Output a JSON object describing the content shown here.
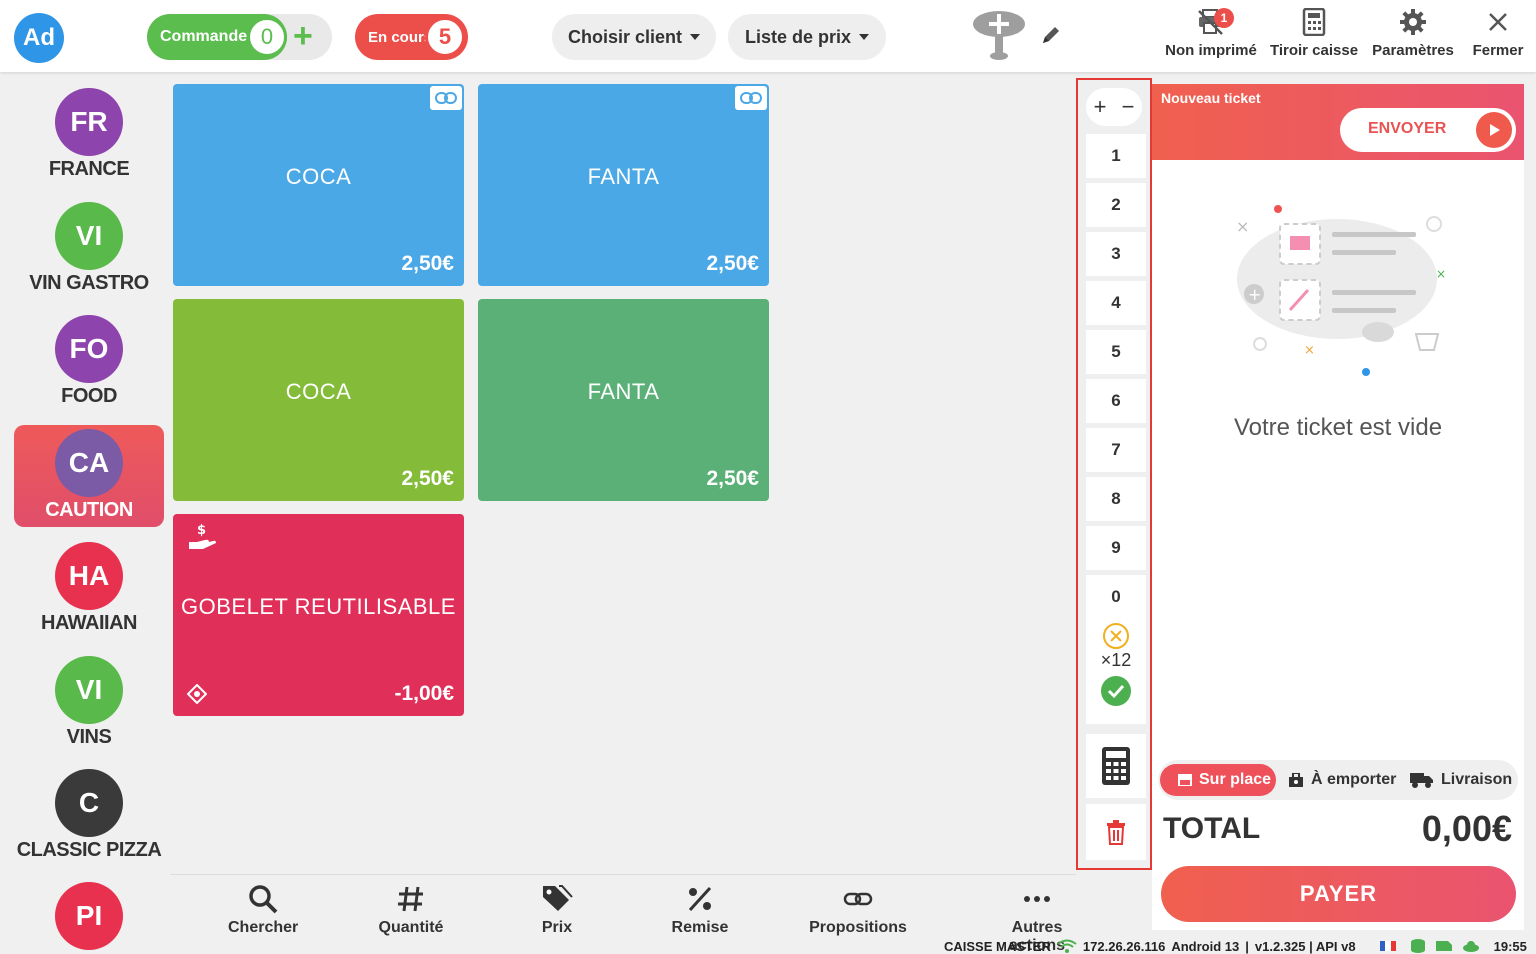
{
  "topbar": {
    "avatar": "Ad",
    "commandes": {
      "label": "Commandes",
      "count": "0"
    },
    "encours": {
      "label": "En cours",
      "count": "5"
    },
    "client_dropdown": "Choisir client",
    "price_list_dropdown": "Liste de prix",
    "actions": {
      "non_imprime": {
        "label": "Non imprimé",
        "badge": "1"
      },
      "tiroir": "Tiroir caisse",
      "parametres": "Paramètres",
      "fermer": "Fermer"
    }
  },
  "categories": [
    {
      "abbr": "FR",
      "label": "FRANCE",
      "color": "#8e44ad"
    },
    {
      "abbr": "VI",
      "label": "VIN GASTRO",
      "color": "#5ab94b"
    },
    {
      "abbr": "FO",
      "label": "FOOD",
      "color": "#8e44ad"
    },
    {
      "abbr": "CA",
      "label": "CAUTION",
      "color": "#7b5ba6",
      "active": true
    },
    {
      "abbr": "HA",
      "label": "HAWAIIAN",
      "color": "#e8304f"
    },
    {
      "abbr": "VI",
      "label": "VINS",
      "color": "#5ab94b"
    },
    {
      "abbr": "C",
      "label": "CLASSIC PIZZA",
      "color": "#3a3a3a"
    },
    {
      "abbr": "PI",
      "label": "",
      "color": "#e8304f"
    }
  ],
  "products": [
    {
      "name": "COCA",
      "price": "2,50€",
      "color": "#4aa8e6",
      "linked": true
    },
    {
      "name": "FANTA",
      "price": "2,50€",
      "color": "#4aa8e6",
      "linked": true
    },
    {
      "name": "COCA",
      "price": "2,50€",
      "color": "#84bc3a",
      "linked": false
    },
    {
      "name": "FANTA",
      "price": "2,50€",
      "color": "#5bb077",
      "linked": false
    },
    {
      "name": "GOBELET REUTILISABLE",
      "price": "-1,00€",
      "color": "#e0305a",
      "linked": false
    }
  ],
  "keypad": {
    "keys": [
      "1",
      "2",
      "3",
      "4",
      "5",
      "6",
      "7",
      "8",
      "9",
      "0"
    ],
    "multiplier": "×12"
  },
  "ticket": {
    "title": "Nouveau ticket",
    "send_label": "ENVOYER",
    "empty_text": "Votre ticket est vide",
    "modes": {
      "sur_place": "Sur place",
      "a_emporter": "À emporter",
      "livraison": "Livraison"
    },
    "total_label": "TOTAL",
    "total_value": "0,00€",
    "pay_label": "PAYER"
  },
  "bottombar": {
    "chercher": "Chercher",
    "quantite": "Quantité",
    "prix": "Prix",
    "remise": "Remise",
    "propositions": "Propositions",
    "autres": "Autres actions"
  },
  "status": {
    "device": "CAISSE MASTER",
    "ip": "172.26.26.116",
    "os": "Android 13",
    "version": "v1.2.325 | API v8",
    "time": "19:55"
  }
}
